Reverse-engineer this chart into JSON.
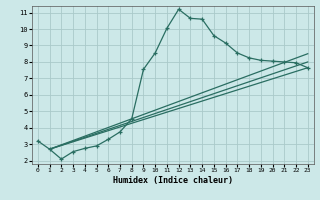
{
  "xlabel": "Humidex (Indice chaleur)",
  "bg_color": "#cce8e8",
  "grid_color": "#aacaca",
  "line_color": "#2a6e62",
  "xlim": [
    -0.5,
    23.5
  ],
  "ylim": [
    1.8,
    11.4
  ],
  "yticks": [
    2,
    3,
    4,
    5,
    6,
    7,
    8,
    9,
    10,
    11
  ],
  "xticks": [
    0,
    1,
    2,
    3,
    4,
    5,
    6,
    7,
    8,
    9,
    10,
    11,
    12,
    13,
    14,
    15,
    16,
    17,
    18,
    19,
    20,
    21,
    22,
    23
  ],
  "line1_x": [
    0,
    1,
    2,
    3,
    4,
    5,
    6,
    7,
    8,
    9,
    10,
    11,
    12,
    13,
    14,
    15,
    16,
    17,
    18,
    19,
    20,
    21,
    22,
    23
  ],
  "line1_y": [
    3.2,
    2.7,
    2.1,
    2.55,
    2.75,
    2.9,
    3.3,
    3.75,
    4.55,
    7.55,
    8.55,
    10.05,
    11.2,
    10.65,
    10.6,
    9.6,
    9.15,
    8.55,
    8.25,
    8.1,
    8.05,
    8.0,
    7.95,
    7.65
  ],
  "line2_x": [
    1,
    23
  ],
  "line2_y": [
    2.7,
    7.65
  ],
  "line3_x": [
    1,
    23
  ],
  "line3_y": [
    2.7,
    8.0
  ],
  "line4_x": [
    1,
    23
  ],
  "line4_y": [
    2.7,
    8.5
  ]
}
